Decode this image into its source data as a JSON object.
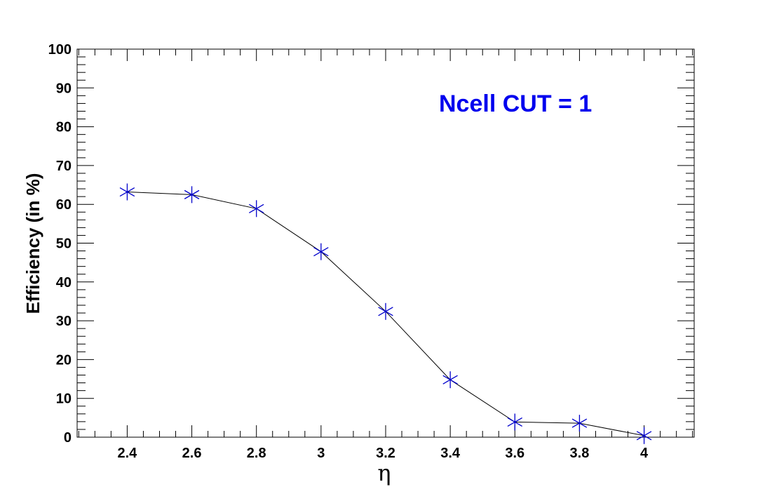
{
  "chart_data": {
    "type": "line",
    "title": "",
    "xlabel": "η",
    "ylabel": "Efficiency (in %)",
    "annotation": "Ncell CUT = 1",
    "xlim": [
      2.245,
      4.155
    ],
    "ylim": [
      0,
      100
    ],
    "x_ticks": [
      "2.4",
      "2.6",
      "2.8",
      "3",
      "3.2",
      "3.4",
      "3.6",
      "3.8",
      "4"
    ],
    "y_ticks": [
      "0",
      "10",
      "20",
      "30",
      "40",
      "50",
      "60",
      "70",
      "80",
      "90",
      "100"
    ],
    "grid": false,
    "series": [
      {
        "x": [
          2.4,
          2.6,
          2.8,
          3.0,
          3.2,
          3.4,
          3.6,
          3.8,
          4.0
        ],
        "y": [
          63.2,
          62.5,
          58.9,
          47.8,
          32.4,
          14.8,
          3.9,
          3.6,
          0.4
        ]
      }
    ],
    "colors": {
      "marker": "#0000cc",
      "line": "#000000",
      "annotation": "#0000ee"
    }
  }
}
